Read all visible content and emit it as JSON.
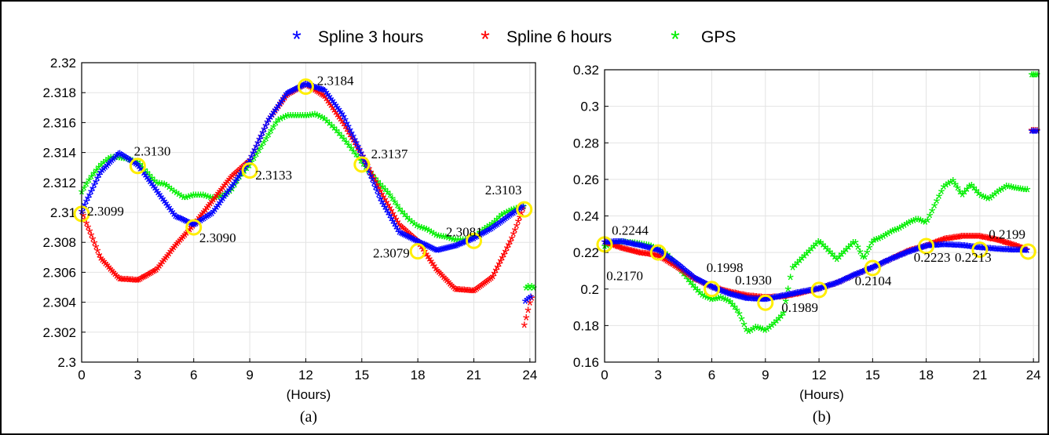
{
  "legend": [
    {
      "name": "Spline 3 hours",
      "color": "#0000ff",
      "marker": "*"
    },
    {
      "name": "Spline 6 hours",
      "color": "#ff0000",
      "marker": "*"
    },
    {
      "name": "GPS",
      "color": "#00ee00",
      "marker": "*"
    }
  ],
  "chart_data": [
    {
      "type": "scatter",
      "panel_label": "(a)",
      "xlabel": "(Hours)",
      "ylabel": "",
      "xlim": [
        0,
        24.3
      ],
      "ylim": [
        2.3,
        2.32
      ],
      "xticks": [
        0,
        3,
        6,
        9,
        12,
        15,
        18,
        21,
        24
      ],
      "yticks": [
        2.3,
        2.302,
        2.304,
        2.306,
        2.308,
        2.31,
        2.312,
        2.314,
        2.316,
        2.318,
        2.32
      ],
      "grid": true,
      "series": [
        {
          "name": "Spline 3 hours",
          "color": "#0000ff",
          "x": [
            0,
            1,
            2,
            3,
            4,
            5,
            6,
            7,
            8,
            9,
            10,
            11,
            12,
            13,
            14,
            15,
            16,
            17,
            18,
            19,
            20,
            21,
            22,
            23,
            23.7
          ],
          "y": [
            2.3099,
            2.3125,
            2.3138,
            2.313,
            2.3113,
            2.3096,
            2.309,
            2.3098,
            2.3115,
            2.3133,
            2.316,
            2.3178,
            2.3184,
            2.318,
            2.3163,
            2.3137,
            2.3107,
            2.3085,
            2.3079,
            2.3073,
            2.3076,
            2.3081,
            2.3088,
            2.3097,
            2.3103
          ],
          "tail_x": [
            23.75,
            23.85,
            23.95,
            24.05
          ],
          "tail_y": [
            2.3039,
            2.304,
            2.3041,
            2.3042
          ]
        },
        {
          "name": "Spline 6 hours",
          "color": "#ff0000",
          "x": [
            0,
            1,
            2,
            3,
            4,
            5,
            6,
            7,
            8,
            9,
            10,
            11,
            12,
            13,
            14,
            15,
            16,
            17,
            18,
            19,
            20,
            21,
            22,
            23,
            23.7
          ],
          "y": [
            2.3099,
            2.3068,
            2.3054,
            2.3053,
            2.306,
            2.3076,
            2.309,
            2.3106,
            2.3122,
            2.3133,
            2.316,
            2.3177,
            2.3184,
            2.3176,
            2.3158,
            2.3137,
            2.3112,
            2.309,
            2.3079,
            2.306,
            2.3047,
            2.3046,
            2.3055,
            2.308,
            2.3103
          ],
          "tail_x": [
            23.7,
            23.8,
            23.9,
            24.0,
            24.1
          ],
          "tail_y": [
            2.3023,
            2.3028,
            2.3033,
            2.3038,
            2.3041
          ]
        },
        {
          "name": "GPS",
          "color": "#00ee00",
          "x": [
            0,
            0.5,
            1,
            1.5,
            2,
            2.5,
            3,
            3.5,
            4,
            4.5,
            5,
            5.5,
            6,
            6.5,
            7,
            7.5,
            8,
            8.5,
            9,
            9.5,
            10,
            10.5,
            11,
            11.5,
            12,
            12.5,
            13,
            13.5,
            14,
            14.5,
            15,
            15.5,
            16,
            16.5,
            17,
            17.5,
            18,
            18.5,
            19,
            19.5,
            20,
            20.5,
            21,
            21.5,
            22,
            22.5,
            23,
            23.5,
            23.7
          ],
          "y": [
            2.3112,
            2.3122,
            2.313,
            2.3135,
            2.3135,
            2.3134,
            2.3132,
            2.3125,
            2.3118,
            2.3117,
            2.3112,
            2.3108,
            2.311,
            2.311,
            2.3108,
            2.3109,
            2.3113,
            2.3123,
            2.313,
            2.314,
            2.315,
            2.316,
            2.3163,
            2.3163,
            2.3163,
            2.3164,
            2.3161,
            2.3155,
            2.3148,
            2.314,
            2.3132,
            2.3124,
            2.3117,
            2.311,
            2.3101,
            2.3094,
            2.3089,
            2.3087,
            2.3083,
            2.3082,
            2.308,
            2.308,
            2.3082,
            2.3087,
            2.3091,
            2.3097,
            2.31,
            2.3102,
            2.3102
          ],
          "tail_x": [
            23.8,
            23.9,
            24.0,
            24.1,
            24.2
          ],
          "tail_y": [
            2.3048,
            2.3049,
            2.3048,
            2.3049,
            2.3048
          ]
        }
      ],
      "markers": {
        "color": "#ffee00",
        "x": [
          0,
          3,
          6,
          9,
          12,
          15,
          18,
          21,
          23.7
        ],
        "y": [
          2.3099,
          2.3131,
          2.309,
          2.3128,
          2.3184,
          2.3132,
          2.3074,
          2.3081,
          2.3102
        ]
      },
      "annotations": [
        {
          "text": "2.3099",
          "x": 0.3,
          "y": 2.3098
        },
        {
          "text": "2.3130",
          "x": 2.8,
          "y": 2.3138
        },
        {
          "text": "2.3090",
          "x": 6.3,
          "y": 2.308
        },
        {
          "text": "2.3133",
          "x": 9.3,
          "y": 2.3122
        },
        {
          "text": "2.3184",
          "x": 12.6,
          "y": 2.3185
        },
        {
          "text": "2.3137",
          "x": 15.5,
          "y": 2.3136
        },
        {
          "text": "2.3079",
          "x": 15.6,
          "y": 2.307
        },
        {
          "text": "2.3081",
          "x": 19.5,
          "y": 2.3084
        },
        {
          "text": "2.3103",
          "x": 21.6,
          "y": 2.3112
        }
      ]
    },
    {
      "type": "scatter",
      "panel_label": "(b)",
      "xlabel": "(Hours)",
      "ylabel": "",
      "xlim": [
        0,
        24.3
      ],
      "ylim": [
        0.16,
        0.32
      ],
      "xticks": [
        0,
        3,
        6,
        9,
        12,
        15,
        18,
        21,
        24
      ],
      "yticks": [
        0.16,
        0.18,
        0.2,
        0.22,
        0.24,
        0.26,
        0.28,
        0.3,
        0.32
      ],
      "grid": true,
      "series": [
        {
          "name": "Spline 3 hours",
          "color": "#0000ff",
          "x": [
            0,
            1,
            2,
            3,
            4,
            5,
            6,
            7,
            8,
            9,
            10,
            11,
            12,
            13,
            14,
            15,
            16,
            17,
            18,
            19,
            20,
            21,
            22,
            23,
            23.7
          ],
          "y": [
            0.2244,
            0.2245,
            0.2225,
            0.22,
            0.213,
            0.205,
            0.1998,
            0.196,
            0.1935,
            0.193,
            0.195,
            0.197,
            0.1989,
            0.202,
            0.2065,
            0.2104,
            0.215,
            0.219,
            0.2223,
            0.223,
            0.2225,
            0.2213,
            0.2205,
            0.22,
            0.2199
          ],
          "tail_x": [
            23.9,
            24.0,
            24.1,
            24.2
          ],
          "tail_y": [
            0.285,
            0.285,
            0.285,
            0.285
          ]
        },
        {
          "name": "Spline 6 hours",
          "color": "#ff0000",
          "x": [
            0,
            1,
            2,
            3,
            4,
            5,
            6,
            7,
            8,
            9,
            10,
            11,
            12,
            13,
            14,
            15,
            16,
            17,
            18,
            19,
            20,
            21,
            22,
            23,
            23.7
          ],
          "y": [
            0.2244,
            0.221,
            0.2185,
            0.217,
            0.211,
            0.2045,
            0.1998,
            0.197,
            0.195,
            0.194,
            0.1945,
            0.1965,
            0.1989,
            0.202,
            0.2065,
            0.2104,
            0.215,
            0.2195,
            0.2223,
            0.226,
            0.2275,
            0.2275,
            0.2255,
            0.2225,
            0.2199
          ],
          "tail_x": [
            23.9,
            24.0,
            24.1,
            24.2
          ],
          "tail_y": [
            0.2855,
            0.2855,
            0.2855,
            0.2855
          ]
        },
        {
          "name": "GPS",
          "color": "#00ee00",
          "x": [
            0,
            0.5,
            1,
            1.5,
            2,
            2.5,
            3,
            3.5,
            4,
            4.5,
            5,
            5.5,
            6,
            6.5,
            7,
            7.5,
            8,
            8.5,
            9,
            9.5,
            10,
            10.5,
            11,
            11.5,
            12,
            12.5,
            13,
            13.5,
            14,
            14.5,
            15,
            15.5,
            16,
            16.5,
            17,
            17.5,
            18,
            18.5,
            19,
            19.5,
            20,
            20.5,
            21,
            21.5,
            22,
            22.5,
            23,
            23.5,
            23.7
          ],
          "y": [
            0.222,
            0.2235,
            0.2245,
            0.224,
            0.2235,
            0.2225,
            0.2205,
            0.2175,
            0.212,
            0.206,
            0.2,
            0.195,
            0.193,
            0.194,
            0.192,
            0.186,
            0.175,
            0.178,
            0.176,
            0.18,
            0.185,
            0.21,
            0.215,
            0.22,
            0.225,
            0.22,
            0.215,
            0.22,
            0.225,
            0.215,
            0.225,
            0.227,
            0.23,
            0.232,
            0.235,
            0.237,
            0.235,
            0.245,
            0.255,
            0.258,
            0.25,
            0.256,
            0.25,
            0.248,
            0.252,
            0.255,
            0.254,
            0.253,
            0.253
          ],
          "tail_x": [
            23.9,
            24.0,
            24.1,
            24.2
          ],
          "tail_y": [
            0.316,
            0.316,
            0.316,
            0.316
          ]
        }
      ],
      "markers": {
        "color": "#ffee00",
        "x": [
          0,
          3,
          6,
          9,
          12,
          15,
          18,
          21,
          23.7
        ],
        "y": [
          0.2244,
          0.22,
          0.2,
          0.1925,
          0.1995,
          0.2115,
          0.2235,
          0.2215,
          0.2205
        ]
      },
      "annotations": [
        {
          "text": "0.2244",
          "x": 0.4,
          "y": 0.2298
        },
        {
          "text": "0.2170",
          "x": 0.1,
          "y": 0.2048
        },
        {
          "text": "0.1998",
          "x": 5.7,
          "y": 0.2093
        },
        {
          "text": "0.1930",
          "x": 7.3,
          "y": 0.2025
        },
        {
          "text": "0.1989",
          "x": 9.9,
          "y": 0.1875
        },
        {
          "text": "0.2104",
          "x": 14.0,
          "y": 0.202
        },
        {
          "text": "0.2223",
          "x": 17.3,
          "y": 0.215
        },
        {
          "text": "0.2213",
          "x": 19.6,
          "y": 0.215
        },
        {
          "text": "0.2199",
          "x": 21.5,
          "y": 0.2275
        }
      ]
    }
  ]
}
